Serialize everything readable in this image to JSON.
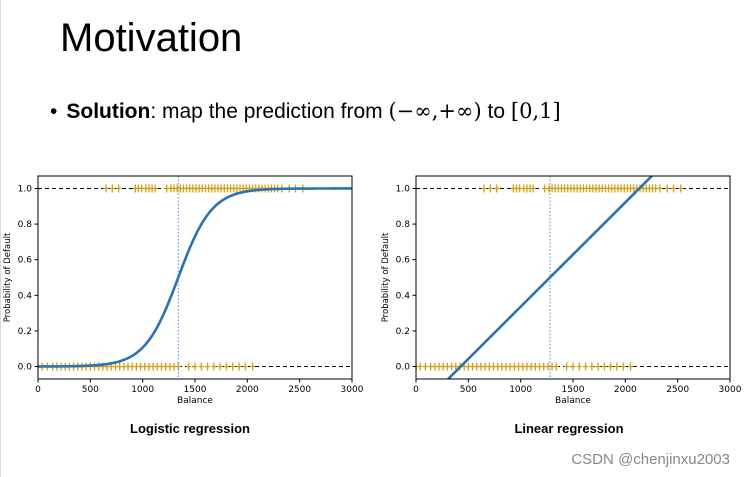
{
  "slide": {
    "title": "Motivation",
    "bullet": {
      "strong": "Solution",
      "text": ": map the prediction from ",
      "from_interval": "(−∞,+∞)",
      "to_word": " to ",
      "to_interval": "[0,1]"
    }
  },
  "watermark": "CSDN @chenjinxu2003",
  "colors": {
    "curve": "#2a72b0",
    "marker": "#d4a017",
    "vline": "#4e8fcc",
    "axis": "#000000",
    "hline": "#000000"
  },
  "chart_data": [
    {
      "type": "line",
      "title": "Logistic regression",
      "xlabel": "Balance",
      "ylabel": "Probability of Default",
      "xlim": [
        0,
        3000
      ],
      "ylim": [
        -0.07,
        1.07
      ],
      "xticks": [
        0,
        500,
        1000,
        1500,
        2000,
        2500,
        3000
      ],
      "xtick_labels": [
        "0",
        "500",
        "1000",
        "1500",
        "2000",
        "2500",
        "3000"
      ],
      "yticks": [
        0.0,
        0.2,
        0.4,
        0.6,
        0.8,
        1.0
      ],
      "ytick_labels": [
        "0.0",
        "0.2",
        "0.4",
        "0.6",
        "0.8",
        "1.0"
      ],
      "reference_hlines": [
        0.0,
        1.0
      ],
      "decision_vline": 1340,
      "curve": {
        "kind": "logistic",
        "midpoint": 1340,
        "scale": 160,
        "x_range": [
          0,
          3000
        ]
      },
      "points_y0_balance": [
        0,
        40,
        90,
        140,
        180,
        220,
        260,
        300,
        340,
        380,
        420,
        460,
        500,
        540,
        580,
        620,
        660,
        700,
        740,
        780,
        820,
        860,
        900,
        940,
        980,
        1020,
        1060,
        1100,
        1140,
        1180,
        1220,
        1260,
        1300,
        1340,
        1440,
        1500,
        1560,
        1620,
        1680,
        1740,
        1800,
        1860,
        1920,
        1980,
        2050
      ],
      "points_y1_balance": [
        650,
        710,
        770,
        930,
        960,
        990,
        1030,
        1060,
        1090,
        1120,
        1230,
        1270,
        1300,
        1330,
        1360,
        1390,
        1420,
        1450,
        1480,
        1510,
        1540,
        1570,
        1600,
        1630,
        1660,
        1690,
        1720,
        1750,
        1780,
        1810,
        1840,
        1870,
        1900,
        1930,
        1960,
        1990,
        2020,
        2050,
        2080,
        2110,
        2140,
        2170,
        2200,
        2230,
        2260,
        2290,
        2330,
        2400,
        2460,
        2530
      ]
    },
    {
      "type": "line",
      "title": "Linear regression",
      "xlabel": "Balance",
      "ylabel": "Probability of Default",
      "xlim": [
        0,
        3000
      ],
      "ylim": [
        -0.07,
        1.07
      ],
      "xticks": [
        0,
        500,
        1000,
        1500,
        2000,
        2500,
        3000
      ],
      "xtick_labels": [
        "0",
        "500",
        "1000",
        "1500",
        "2000",
        "2500",
        "3000"
      ],
      "yticks": [
        0.0,
        0.2,
        0.4,
        0.6,
        0.8,
        1.0
      ],
      "ytick_labels": [
        "0.0",
        "0.2",
        "0.4",
        "0.6",
        "0.8",
        "1.0"
      ],
      "reference_hlines": [
        0.0,
        1.0
      ],
      "decision_vline": 1280,
      "curve": {
        "kind": "linear",
        "slope": 0.000586,
        "intercept": -0.25,
        "x_range": [
          0,
          3000
        ]
      },
      "points_y0_balance": [
        0,
        40,
        90,
        140,
        180,
        220,
        260,
        300,
        340,
        380,
        420,
        460,
        500,
        540,
        580,
        620,
        660,
        700,
        740,
        780,
        820,
        860,
        900,
        940,
        980,
        1020,
        1060,
        1100,
        1140,
        1180,
        1220,
        1260,
        1300,
        1340,
        1440,
        1500,
        1560,
        1620,
        1680,
        1740,
        1800,
        1860,
        1920,
        1980,
        2050
      ],
      "points_y1_balance": [
        650,
        710,
        770,
        930,
        960,
        990,
        1030,
        1060,
        1090,
        1120,
        1230,
        1270,
        1300,
        1330,
        1360,
        1390,
        1420,
        1450,
        1480,
        1510,
        1540,
        1570,
        1600,
        1630,
        1660,
        1690,
        1720,
        1750,
        1780,
        1810,
        1840,
        1870,
        1900,
        1930,
        1960,
        1990,
        2020,
        2050,
        2080,
        2110,
        2140,
        2170,
        2200,
        2230,
        2260,
        2290,
        2330,
        2400,
        2460,
        2530
      ]
    }
  ]
}
